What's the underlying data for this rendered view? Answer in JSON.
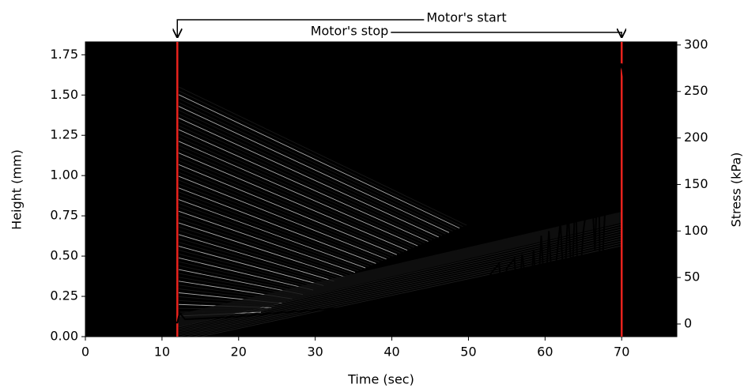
{
  "chart_data": {
    "type": "line",
    "x_label": "Time (sec)",
    "y_label": "Height (mm)",
    "y2_label": "Stress (kPa)",
    "xlim": [
      0,
      77.2
    ],
    "xticks": [
      0,
      10,
      20,
      30,
      40,
      50,
      60,
      70
    ],
    "ylim": [
      0,
      1.83
    ],
    "yticks": [
      {
        "value": 0,
        "label": "0.00"
      },
      {
        "value": 0.25,
        "label": "0.25"
      },
      {
        "value": 0.5,
        "label": "0.50"
      },
      {
        "value": 0.75,
        "label": "0.75"
      },
      {
        "value": 1,
        "label": "1.00"
      },
      {
        "value": 1.25,
        "label": "1.25"
      },
      {
        "value": 1.5,
        "label": "1.50"
      },
      {
        "value": 1.75,
        "label": "1.75"
      }
    ],
    "y2lim": [
      -13.6,
      303.3
    ],
    "y2ticks": [
      0,
      50,
      100,
      150,
      200,
      250,
      300
    ],
    "x": [
      0,
      12,
      12.3,
      13,
      20,
      25,
      30,
      35,
      36,
      40,
      45,
      47,
      48,
      50,
      52,
      53,
      54,
      54.5,
      55,
      56,
      56.5,
      57,
      58,
      58.5,
      59,
      59.5,
      60,
      60.5,
      61,
      62,
      62.5,
      63,
      63.5,
      64,
      64.3,
      65,
      66,
      66.5,
      67,
      67.2,
      68,
      69,
      70,
      71,
      72,
      74,
      76,
      77.2
    ],
    "series": [
      {
        "color": "#000000",
        "axis": "y2",
        "values": [
          1.5,
          1.5,
          12,
          5,
          8,
          12,
          15,
          18,
          12,
          13,
          13,
          14,
          20,
          35,
          40,
          55,
          65,
          20,
          60,
          70,
          10,
          75,
          15,
          80,
          20,
          95,
          25,
          100,
          30,
          110,
          30,
          125,
          40,
          150,
          15,
          100,
          160,
          80,
          180,
          20,
          150,
          250,
          280,
          220,
          180,
          150,
          130,
          123
        ]
      }
    ],
    "vlines": [
      12,
      70
    ],
    "vline_color": "#e8221d",
    "annotations": [
      {
        "text": "Motor's start",
        "x": 12
      },
      {
        "text": "Motor's stop",
        "x": 70
      }
    ]
  }
}
